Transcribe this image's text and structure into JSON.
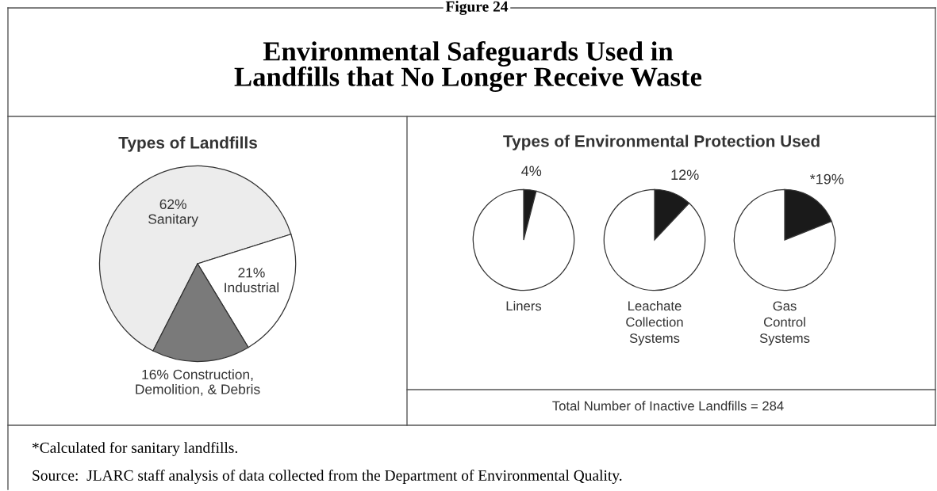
{
  "chart_data": [
    {
      "type": "pie",
      "title": "Types of Landfills",
      "categories": [
        "Sanitary",
        "Industrial",
        "Construction, Demolition, & Debris"
      ],
      "values": [
        62,
        21,
        16
      ],
      "value_labels": [
        "62%",
        "21%",
        "16%"
      ],
      "colors": [
        "#ececec",
        "#ffffff",
        "#7a7a7a"
      ],
      "annotations": [
        "Figure 24",
        "Environmental Safeguards Used in\nLandfills that No Longer Receive Waste",
        "*Calculated for sanitary landfills.",
        "Source:  JLARC staff analysis of data collected from the Department of Environmental Quality."
      ]
    },
    {
      "type": "pie",
      "title": "Types of Environmental Protection Used",
      "xlabel": "Liners",
      "categories": [
        null,
        null
      ],
      "values": [
        4,
        96
      ],
      "value_labels": [
        "4%",
        null
      ],
      "colors": [
        "#1a1a1a",
        "#ffffff"
      ]
    },
    {
      "type": "pie",
      "xlabel": "Leachate\nCollection\nSystems",
      "categories": [
        null,
        null
      ],
      "values": [
        12,
        88
      ],
      "value_labels": [
        "12%",
        null
      ],
      "colors": [
        "#1a1a1a",
        "#ffffff"
      ]
    },
    {
      "type": "pie",
      "xlabel": "Gas\nControl\nSystems",
      "categories": [
        null,
        null
      ],
      "values": [
        19,
        81
      ],
      "value_labels": [
        "*19%",
        null
      ],
      "colors": [
        "#1a1a1a",
        "#ffffff"
      ],
      "annotations": [
        "Total Number of Inactive Landfills = 284"
      ]
    }
  ]
}
